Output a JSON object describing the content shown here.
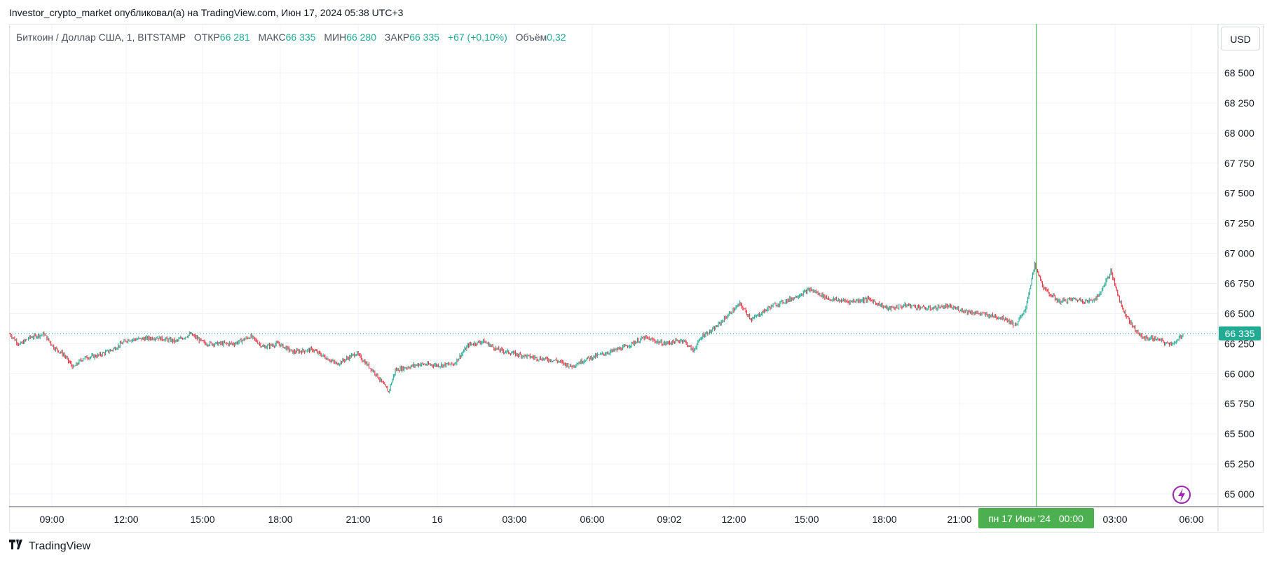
{
  "header": {
    "publish_line": "Investor_crypto_market опубликовал(а) на TradingView.com, Июн 17, 2024 05:38 UTC+3"
  },
  "legend": {
    "symbol": "Биткоин / Доллар США, 1, BITSTAMP",
    "open_label": "ОТКР",
    "open_value": "66 281",
    "high_label": "МАКС",
    "high_value": "66 335",
    "low_label": "МИН",
    "low_value": "66 280",
    "close_label": "ЗАКР",
    "close_value": "66 335",
    "change": "+67 (+0,10%)",
    "volume_label": "Объём",
    "volume_value": "0,32"
  },
  "currency_button": "USD",
  "footer": {
    "brand": "TradingView"
  },
  "colors": {
    "up": "#22ab94",
    "down": "#f23645",
    "accent": "#4caf50",
    "grid": "#f0f3fa",
    "price_tag": "#22ab94",
    "alert_icon": "#9c27b0"
  },
  "icons": [
    "tradingview-logo-icon",
    "lightning-alert-icon"
  ],
  "chart_data": {
    "type": "candlestick",
    "symbol": "Биткоин / Доллар США, 1, BITSTAMP",
    "currency": "USD",
    "y_ticks": [
      "68 500",
      "68 250",
      "68 000",
      "67 750",
      "67 500",
      "67 250",
      "67 000",
      "66 750",
      "66 500",
      "66 250",
      "66 000",
      "65 750",
      "65 500",
      "65 250",
      "65 000"
    ],
    "ylim": [
      64900,
      68800
    ],
    "x_ticks": [
      "09:00",
      "12:00",
      "15:00",
      "18:00",
      "21:00",
      "16",
      "03:00",
      "06:00",
      "09:02",
      "12:00",
      "15:00",
      "18:00",
      "21:00",
      "03:00",
      "06:00"
    ],
    "crosshair_label": "пн 17 Июн '24   00:00",
    "last_price": "66 335",
    "last_price_value": 66335,
    "series_anchor": [
      [
        0,
        66330
      ],
      [
        10,
        66240
      ],
      [
        20,
        66300
      ],
      [
        35,
        66330
      ],
      [
        45,
        66220
      ],
      [
        55,
        66160
      ],
      [
        65,
        66050
      ],
      [
        75,
        66130
      ],
      [
        90,
        66150
      ],
      [
        105,
        66200
      ],
      [
        120,
        66280
      ],
      [
        150,
        66300
      ],
      [
        170,
        66270
      ],
      [
        185,
        66330
      ],
      [
        200,
        66250
      ],
      [
        230,
        66250
      ],
      [
        247,
        66310
      ],
      [
        260,
        66220
      ],
      [
        275,
        66250
      ],
      [
        290,
        66180
      ],
      [
        310,
        66200
      ],
      [
        335,
        66080
      ],
      [
        355,
        66170
      ],
      [
        375,
        66000
      ],
      [
        388,
        65850
      ],
      [
        395,
        66030
      ],
      [
        420,
        66080
      ],
      [
        440,
        66070
      ],
      [
        455,
        66080
      ],
      [
        470,
        66240
      ],
      [
        485,
        66270
      ],
      [
        500,
        66200
      ],
      [
        520,
        66160
      ],
      [
        540,
        66130
      ],
      [
        560,
        66110
      ],
      [
        575,
        66060
      ],
      [
        590,
        66120
      ],
      [
        610,
        66170
      ],
      [
        630,
        66220
      ],
      [
        640,
        66260
      ],
      [
        650,
        66300
      ],
      [
        670,
        66250
      ],
      [
        690,
        66280
      ],
      [
        700,
        66190
      ],
      [
        710,
        66320
      ],
      [
        720,
        66360
      ],
      [
        735,
        66480
      ],
      [
        748,
        66580
      ],
      [
        760,
        66450
      ],
      [
        780,
        66560
      ],
      [
        800,
        66620
      ],
      [
        820,
        66700
      ],
      [
        840,
        66620
      ],
      [
        860,
        66600
      ],
      [
        880,
        66620
      ],
      [
        900,
        66540
      ],
      [
        920,
        66570
      ],
      [
        940,
        66540
      ],
      [
        960,
        66560
      ],
      [
        980,
        66520
      ],
      [
        1000,
        66490
      ],
      [
        1020,
        66460
      ],
      [
        1030,
        66400
      ],
      [
        1040,
        66520
      ],
      [
        1050,
        66900
      ],
      [
        1060,
        66700
      ],
      [
        1075,
        66600
      ],
      [
        1090,
        66620
      ],
      [
        1105,
        66600
      ],
      [
        1115,
        66640
      ],
      [
        1128,
        66850
      ],
      [
        1140,
        66540
      ],
      [
        1150,
        66400
      ],
      [
        1160,
        66300
      ],
      [
        1175,
        66290
      ],
      [
        1185,
        66250
      ],
      [
        1195,
        66260
      ],
      [
        1202,
        66335
      ]
    ]
  }
}
